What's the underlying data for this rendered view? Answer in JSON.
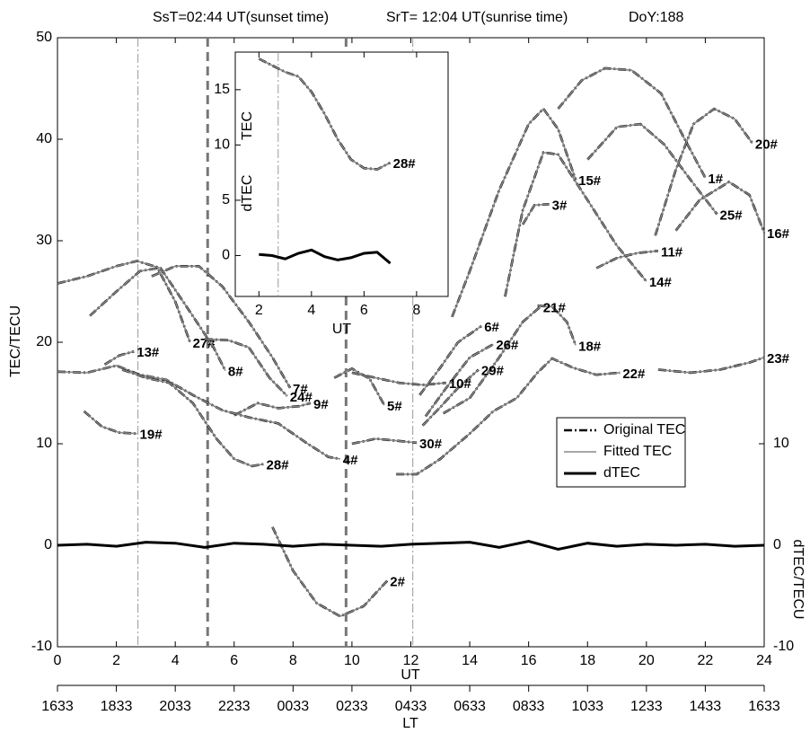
{
  "chart_data": [
    {
      "type": "line",
      "annotations": [
        "SsT=02:44 UT(sunset time)",
        "SrT= 12:04 UT(sunrise time)",
        "DoY:188"
      ],
      "xlabel": "UT",
      "ylabel": "TEC/TECU",
      "y2label": "dTEC/TECU",
      "lt_label": "LT",
      "xlim": [
        0,
        24
      ],
      "ylim": [
        -10,
        50
      ],
      "y2lim": [
        -10,
        50
      ],
      "xticks": [
        0,
        2,
        4,
        6,
        8,
        10,
        12,
        14,
        16,
        18,
        20,
        22,
        24
      ],
      "yticks": [
        -10,
        0,
        10,
        20,
        30,
        40,
        50
      ],
      "y2ticks": [
        -10,
        0,
        10
      ],
      "lt_ticks": [
        {
          "value": 0,
          "label": "1633"
        },
        {
          "value": 2,
          "label": "1833"
        },
        {
          "value": 4,
          "label": "2033"
        },
        {
          "value": 6,
          "label": "2233"
        },
        {
          "value": 8,
          "label": "0033"
        },
        {
          "value": 10,
          "label": "0233"
        },
        {
          "value": 12,
          "label": "0433"
        },
        {
          "value": 14,
          "label": "0633"
        },
        {
          "value": 16,
          "label": "0833"
        },
        {
          "value": 18,
          "label": "1033"
        },
        {
          "value": 20,
          "label": "1233"
        },
        {
          "value": 22,
          "label": "1433"
        },
        {
          "value": 24,
          "label": "1633"
        }
      ],
      "vlines": [
        {
          "x": 2.733,
          "style": "dashdot"
        },
        {
          "x": 5.1,
          "style": "dashed"
        },
        {
          "x": 9.8,
          "style": "dashed"
        },
        {
          "x": 12.067,
          "style": "dashdot"
        }
      ],
      "legend": "center right",
      "series": [
        {
          "name": "Original TEC",
          "color": "#000000",
          "style": "dashdot"
        },
        {
          "name": "Fitted TEC",
          "color": "#888888",
          "style": "solid"
        },
        {
          "name": "dTEC",
          "color": "#000000",
          "style": "thick"
        }
      ],
      "arcs": [
        {
          "label": "1#",
          "x": [
            17,
            17.8,
            18.6,
            19.5,
            20.5,
            21.3,
            22
          ],
          "values": [
            43,
            45.8,
            47,
            46.8,
            44.5,
            40,
            36.2
          ]
        },
        {
          "label": "20#",
          "x": [
            20.3,
            21,
            21.6,
            22.3,
            23,
            23.6
          ],
          "values": [
            30.5,
            37,
            41.5,
            43,
            42,
            39.6
          ]
        },
        {
          "label": "15#",
          "x": [
            13.4,
            14,
            15,
            16,
            16.5,
            17,
            17.6
          ],
          "values": [
            22.5,
            27,
            35,
            41.5,
            43,
            41,
            36
          ]
        },
        {
          "label": "14#",
          "x": [
            15.2,
            15.8,
            16.5,
            17,
            18,
            19,
            20
          ],
          "values": [
            24.5,
            33,
            38.7,
            38.5,
            34,
            29.5,
            26
          ]
        },
        {
          "label": "3#",
          "x": [
            15.8,
            16.2,
            16.7
          ],
          "values": [
            31.6,
            33.5,
            33.6
          ]
        },
        {
          "label": "25#",
          "x": [
            18,
            19,
            19.8,
            20.6,
            21.5,
            22.4
          ],
          "values": [
            38,
            41.2,
            41.5,
            39.5,
            36,
            32.6
          ]
        },
        {
          "label": "16#",
          "x": [
            21,
            21.8,
            22.8,
            23.5,
            24
          ],
          "values": [
            31,
            34,
            35.8,
            34.5,
            30.8
          ]
        },
        {
          "label": "11#",
          "x": [
            18.3,
            19,
            19.7,
            20.4
          ],
          "values": [
            27.3,
            28.3,
            28.8,
            29
          ]
        },
        {
          "label": "23#",
          "x": [
            20.4,
            21.5,
            22.5,
            23.5,
            24
          ],
          "values": [
            17.3,
            17,
            17.3,
            18,
            18.5
          ]
        },
        {
          "label": "22#",
          "x": [
            11.5,
            12.2,
            13,
            14,
            14.8,
            15.6,
            16.3,
            16.8,
            17.5,
            18.3,
            19.1
          ],
          "values": [
            7,
            7,
            8.5,
            11,
            13.2,
            14.5,
            17,
            18.4,
            17.5,
            16.8,
            17
          ]
        },
        {
          "label": "18#",
          "x": [
            16.3,
            16.8,
            17.3,
            17.6
          ],
          "values": [
            23.6,
            23.5,
            22,
            19.7
          ]
        },
        {
          "label": "21#",
          "x": [
            13.1,
            14,
            15,
            15.8,
            16.4
          ],
          "values": [
            13,
            14.5,
            18.5,
            22,
            23.5
          ]
        },
        {
          "label": "26#",
          "x": [
            12.5,
            13.2,
            14,
            14.8
          ],
          "values": [
            12.7,
            15.5,
            18.5,
            19.8
          ]
        },
        {
          "label": "29#",
          "x": [
            12.4,
            13,
            13.6,
            14.3
          ],
          "values": [
            11.8,
            13.6,
            15.5,
            17.3
          ]
        },
        {
          "label": "6#",
          "x": [
            12.3,
            13,
            13.6,
            14.4
          ],
          "values": [
            14.8,
            17.5,
            20,
            21.6
          ]
        },
        {
          "label": "10#",
          "x": [
            10,
            10.8,
            11.6,
            12.4,
            13.2
          ],
          "values": [
            17,
            16.5,
            16,
            15.8,
            16
          ]
        },
        {
          "label": "5#",
          "x": [
            9.4,
            10,
            10.6,
            11.1
          ],
          "values": [
            16.5,
            17.4,
            16.4,
            13.8
          ]
        },
        {
          "label": "30#",
          "x": [
            10,
            10.8,
            11.5,
            12.2
          ],
          "values": [
            10,
            10.5,
            10.3,
            10.1
          ]
        },
        {
          "label": "27#",
          "x": [
            1.1,
            2,
            2.8,
            3.4,
            4,
            4.5
          ],
          "values": [
            22.6,
            25,
            27,
            27.3,
            24,
            20
          ]
        },
        {
          "label": "8#",
          "x": [
            0,
            1,
            2,
            2.7,
            3.5,
            4.5,
            5.3,
            5.7
          ],
          "values": [
            25.8,
            26.5,
            27.5,
            28,
            27.3,
            23,
            19.5,
            17.2
          ]
        },
        {
          "label": "7#",
          "x": [
            3.2,
            4,
            4.8,
            5.6,
            6.5,
            7.3,
            7.9
          ],
          "values": [
            26.5,
            27.5,
            27.5,
            25.5,
            22,
            18.5,
            15.5
          ]
        },
        {
          "label": "24#",
          "x": [
            5,
            5.8,
            6.5,
            7.2,
            7.8
          ],
          "values": [
            20.3,
            20.2,
            19.5,
            16.5,
            14.7
          ]
        },
        {
          "label": "9#",
          "x": [
            6,
            6.8,
            7.5,
            8.2,
            8.6
          ],
          "values": [
            12.8,
            14,
            13.5,
            13.7,
            14
          ]
        },
        {
          "label": "13#",
          "x": [
            1.6,
            2.1,
            2.6
          ],
          "values": [
            17.8,
            18.7,
            19.1
          ]
        },
        {
          "label": "4#",
          "x": [
            0,
            1,
            2,
            2.8,
            3.7,
            4.6,
            5.6,
            6.5,
            7.5,
            8.5,
            9.2,
            9.6
          ],
          "values": [
            17.1,
            17,
            17.7,
            16.8,
            16.3,
            14.8,
            13.3,
            12.6,
            12,
            10,
            8.7,
            8.5
          ]
        },
        {
          "label": "19#",
          "x": [
            0.9,
            1.5,
            2.1,
            2.7
          ],
          "values": [
            13.2,
            11.7,
            11.1,
            11
          ]
        },
        {
          "label": "28#",
          "x": [
            2.2,
            3,
            3.8,
            4.6,
            5.4,
            6,
            6.6,
            7
          ],
          "values": [
            17.3,
            16.5,
            16,
            14,
            10.5,
            8.5,
            7.8,
            8
          ]
        },
        {
          "label": "2#",
          "x": [
            7.3,
            8,
            8.8,
            9.6,
            10.4,
            11.2
          ],
          "values": [
            1.8,
            -2.5,
            -5.7,
            -7,
            -6,
            -3.5
          ]
        }
      ],
      "dtec": {
        "x": [
          0,
          1,
          2,
          3,
          4,
          5,
          6,
          7,
          8,
          9,
          10,
          11,
          12,
          13,
          14,
          15,
          16,
          17,
          18,
          19,
          20,
          21,
          22,
          23,
          24
        ],
        "values": [
          0,
          0.1,
          -0.1,
          0.3,
          0.2,
          -0.2,
          0.2,
          0.1,
          -0.1,
          0.1,
          0,
          -0.1,
          0.1,
          0.2,
          0.3,
          -0.2,
          0.4,
          -0.4,
          0.2,
          -0.1,
          0.1,
          0,
          0.1,
          -0.1,
          0
        ]
      }
    },
    {
      "type": "line",
      "xlabel": "UT",
      "ylabel_top": "TEC",
      "ylabel_bottom": "dTEC",
      "xlim": [
        1.1,
        9.2
      ],
      "ylim": [
        -3.7,
        18.4
      ],
      "xticks": [
        2,
        4,
        6,
        8
      ],
      "yticks": [
        0,
        5,
        10,
        15
      ],
      "vlines": [
        {
          "x": 2.733,
          "style": "dashdot"
        }
      ],
      "arcs": [
        {
          "label": "28#",
          "x": [
            2,
            2.5,
            3,
            3.5,
            4,
            4.5,
            5,
            5.5,
            6,
            6.5,
            7
          ],
          "values": [
            17.8,
            17.2,
            16.6,
            16.2,
            14.8,
            12.8,
            10.5,
            8.7,
            7.9,
            7.8,
            8.4
          ]
        }
      ],
      "dtec": {
        "x": [
          2,
          2.5,
          3,
          3.5,
          4,
          4.5,
          5,
          5.5,
          6,
          6.5,
          7
        ],
        "values": [
          0.1,
          0,
          -0.3,
          0.2,
          0.5,
          -0.1,
          -0.4,
          -0.2,
          0.2,
          0.3,
          -0.7
        ]
      }
    }
  ]
}
